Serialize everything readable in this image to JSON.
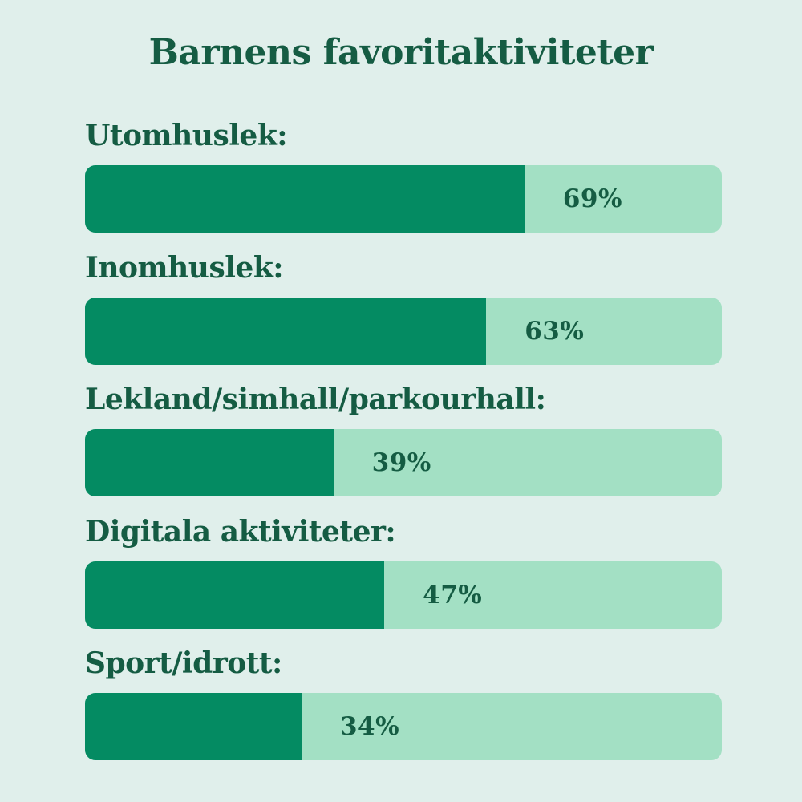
{
  "chart_data": {
    "type": "bar",
    "orientation": "horizontal",
    "title": "Barnens favoritaktiviteter",
    "xlabel": "",
    "ylabel": "",
    "xlim": [
      0,
      100
    ],
    "grid": false,
    "categories": [
      "Utomhuslek:",
      "Inomhuslek:",
      "Lekland/simhall/parkourhall:",
      "Digitala aktiviteter:",
      "Sport/idrott:"
    ],
    "values": [
      69,
      63,
      39,
      47,
      34
    ],
    "value_labels": [
      "69%",
      "63%",
      "39%",
      "47%",
      "34%"
    ],
    "colors": {
      "background": "#e0efeb",
      "bar_fill": "#048b62",
      "bar_track": "#a3e0c4",
      "text": "#155c43"
    }
  }
}
